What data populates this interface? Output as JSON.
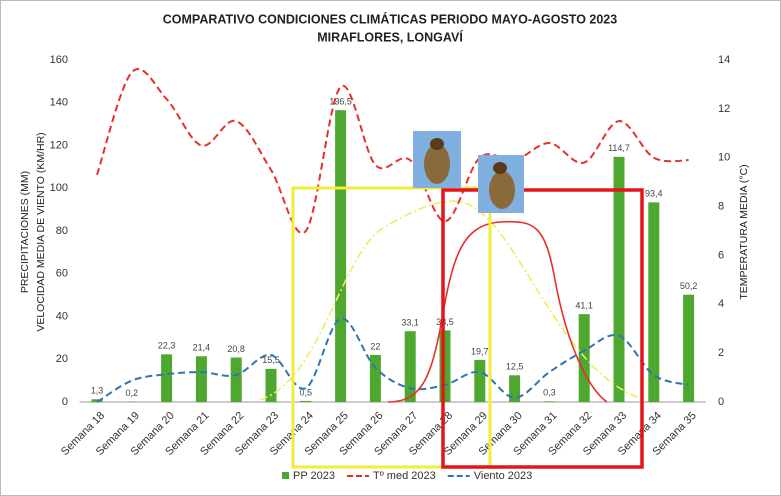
{
  "chart_data": {
    "type": "bar",
    "title": "COMPARATIVO CONDICIONES CLIMÁTICAS PERIODO MAYO-AGOSTO 2023",
    "subtitle": "MIRAFLORES, LONGAVÍ",
    "y_label": [
      "PRECIPITACIONES (MM)",
      "VELOCIDAD MEDIA DE VIENTO (KM/HR)"
    ],
    "y2_label": "TEMPERATURA MEDIA (°C)",
    "categories": [
      "Semana 18",
      "Semana 19",
      "Semana 20",
      "Semana 21",
      "Semana 22",
      "Semana 23",
      "Semana 24",
      "Semana 25",
      "Semana 26",
      "Semana 27",
      "Semana 28",
      "Semana 29",
      "Semana 30",
      "Semana 31",
      "Semana 32",
      "Semana 33",
      "Semana 34",
      "Semana 35"
    ],
    "series": [
      {
        "name": "PP 2023",
        "type": "bar",
        "color": "#4ea72e",
        "values": [
          1.3,
          0.2,
          22.3,
          21.4,
          20.8,
          15.5,
          0.5,
          136.5,
          22,
          33.1,
          33.5,
          19.7,
          12.5,
          0.3,
          41.1,
          114.7,
          93.4,
          50.2
        ],
        "value_labels": [
          "1,3",
          "0,2",
          "22,3",
          "21,4",
          "20,8",
          "15,5",
          "0,5",
          "136,5",
          "22",
          "33,1",
          "33,5",
          "19,7",
          "12,5",
          "0,3",
          "41,1",
          "114,7",
          "93,4",
          "50,2"
        ]
      },
      {
        "name": "Tº med 2023",
        "type": "line",
        "axis": "y2",
        "color": "#e8302a",
        "values": [
          9.3,
          13.5,
          12.4,
          10.5,
          11.5,
          9.5,
          7.0,
          12.9,
          9.7,
          9.9,
          7.4,
          10.0,
          9.9,
          10.6,
          9.8,
          11.5,
          10.0,
          9.9
        ]
      },
      {
        "name": "Viento 2023",
        "type": "line",
        "color": "#2e75b6",
        "values": [
          0,
          10,
          13,
          14,
          12.6,
          22,
          6.5,
          39,
          16,
          6.5,
          8,
          14,
          2,
          14,
          24,
          31,
          12.6,
          8
        ]
      }
    ],
    "ylim": [
      0,
      160
    ],
    "yticks": [
      0,
      20,
      40,
      60,
      80,
      100,
      120,
      140,
      160
    ],
    "y2lim": [
      0,
      14
    ],
    "y2ticks": [
      0,
      2,
      4,
      6,
      8,
      10,
      12,
      14
    ],
    "grid": false,
    "legend": "bottom"
  }
}
